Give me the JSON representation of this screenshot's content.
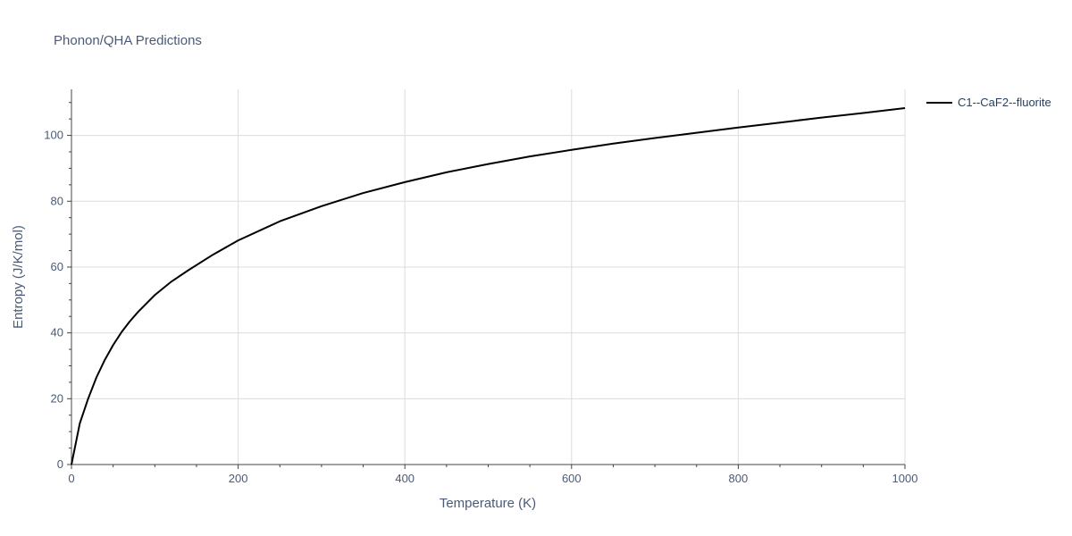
{
  "chart_data": {
    "type": "line",
    "title": "Phonon/QHA Predictions",
    "xlabel": "Temperature (K)",
    "ylabel": "Entropy (J/K/mol)",
    "xlim": [
      0,
      1000
    ],
    "ylim": [
      0,
      114
    ],
    "x_ticks": [
      0,
      200,
      400,
      600,
      800,
      1000
    ],
    "y_ticks": [
      0,
      20,
      40,
      60,
      80,
      100
    ],
    "grid": true,
    "legend_position": "top-right",
    "series": [
      {
        "name": "C1--CaF2--fluorite",
        "color": "#000000",
        "x": [
          0,
          10,
          20,
          30,
          40,
          50,
          60,
          70,
          80,
          100,
          120,
          140,
          170,
          200,
          250,
          300,
          350,
          400,
          450,
          500,
          550,
          600,
          650,
          700,
          750,
          800,
          850,
          900,
          950,
          1000
        ],
        "y": [
          0,
          12.5,
          20.0,
          26.5,
          31.8,
          36.3,
          40.2,
          43.5,
          46.4,
          51.5,
          55.6,
          59.0,
          63.8,
          68.1,
          73.9,
          78.5,
          82.5,
          85.8,
          88.8,
          91.3,
          93.6,
          95.6,
          97.5,
          99.2,
          100.8,
          102.4,
          103.9,
          105.4,
          106.8,
          108.3
        ]
      }
    ]
  }
}
